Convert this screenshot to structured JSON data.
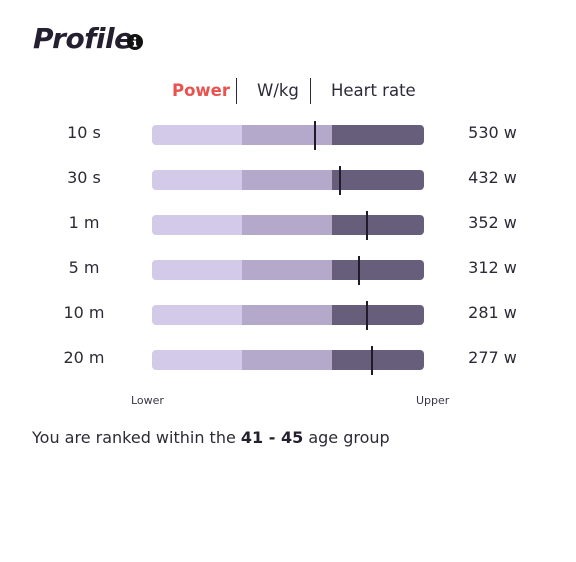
{
  "header": {
    "title": "Profile",
    "info_icon": "info-icon"
  },
  "tabs": [
    {
      "label": "Power",
      "active": true
    },
    {
      "label": "W/kg",
      "active": false
    },
    {
      "label": "Heart rate",
      "active": false
    }
  ],
  "profile_rows": [
    {
      "duration": "10 s",
      "value": "530 w",
      "marker_fraction": 0.6
    },
    {
      "duration": "30 s",
      "value": "432 w",
      "marker_fraction": 0.69
    },
    {
      "duration": "1 m",
      "value": "352 w",
      "marker_fraction": 0.79
    },
    {
      "duration": "5 m",
      "value": "312 w",
      "marker_fraction": 0.76
    },
    {
      "duration": "10 m",
      "value": "281 w",
      "marker_fraction": 0.79
    },
    {
      "duration": "20 m",
      "value": "277 w",
      "marker_fraction": 0.81
    }
  ],
  "scale": {
    "lower_label": "Lower",
    "upper_label": "Upper"
  },
  "ranking": {
    "prefix": "You are ranked within the",
    "age_group": "41 - 45",
    "suffix": "age group"
  },
  "colors": {
    "accent": "#e8534f",
    "band_low": "#d3c9e8",
    "band_mid": "#b4a9cb",
    "band_high": "#675e7c",
    "marker": "#1f1b2a"
  }
}
